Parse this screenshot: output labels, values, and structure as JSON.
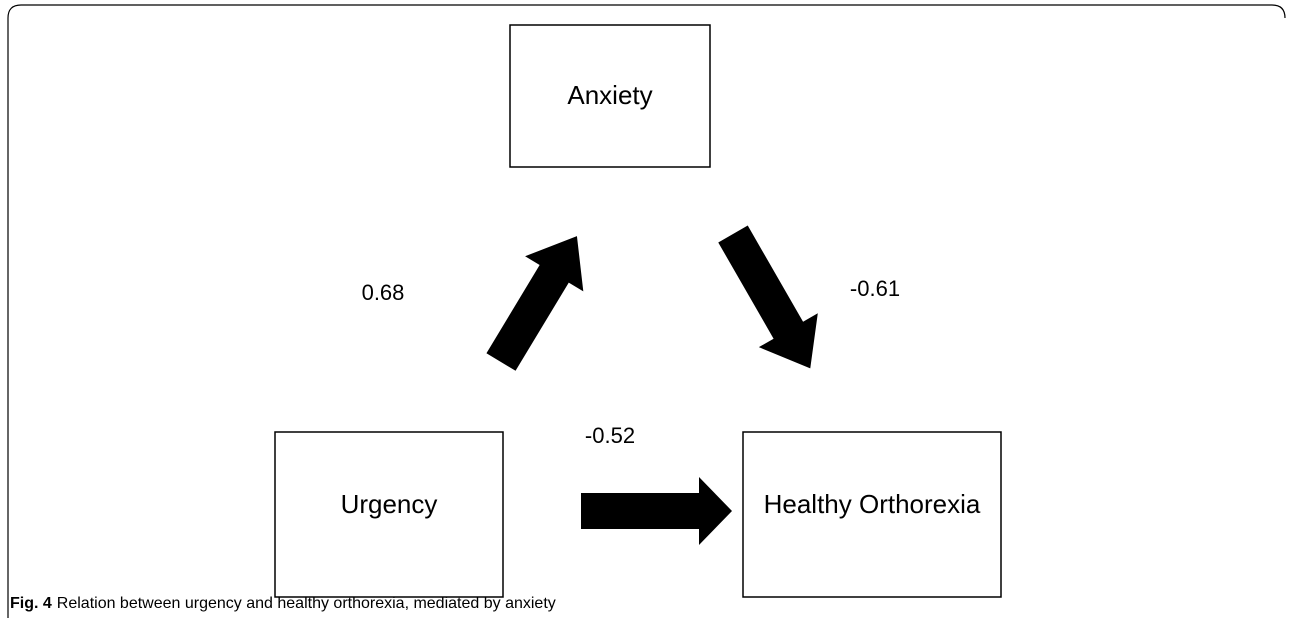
{
  "nodes": [
    {
      "label": "Anxiety"
    },
    {
      "label": "Urgency"
    },
    {
      "label": "Healthy Orthorexia"
    }
  ],
  "edges": [
    {
      "label": "0.68"
    },
    {
      "label": "-0.61"
    },
    {
      "label": "-0.52"
    }
  ],
  "caption": {
    "number": "Fig. 4",
    "text": "Relation between urgency and healthy orthorexia, mediated by anxiety"
  }
}
